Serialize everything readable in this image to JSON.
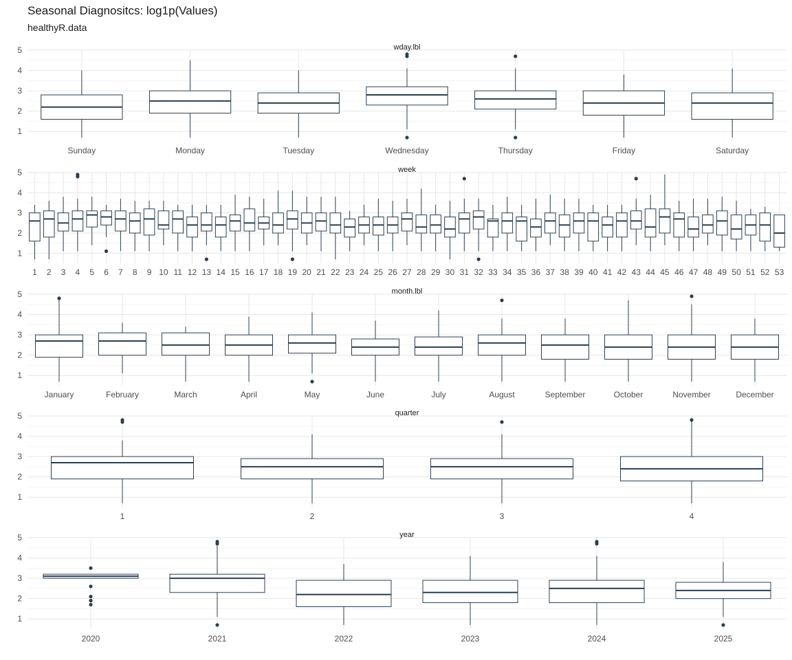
{
  "title": "Seasonal Diagnositcs: log1p(Values)",
  "subtitle": "healthyR.data",
  "colors": {
    "box": "#2c3e50",
    "grid": "#e6e6e6",
    "text": "#4d4d4d"
  },
  "chart_data": [
    {
      "type": "box",
      "facet": "wday.lbl",
      "ylim": [
        0.5,
        5.0
      ],
      "yticks": [
        1,
        2,
        3,
        4,
        5
      ],
      "categories": [
        "Sunday",
        "Monday",
        "Tuesday",
        "Wednesday",
        "Thursday",
        "Friday",
        "Saturday"
      ],
      "boxes": [
        {
          "lo": 0.7,
          "q1": 1.6,
          "med": 2.2,
          "q3": 2.8,
          "hi": 4.0,
          "out": []
        },
        {
          "lo": 0.7,
          "q1": 1.9,
          "med": 2.5,
          "q3": 3.0,
          "hi": 4.5,
          "out": []
        },
        {
          "lo": 0.7,
          "q1": 1.9,
          "med": 2.4,
          "q3": 2.9,
          "hi": 4.0,
          "out": []
        },
        {
          "lo": 1.1,
          "q1": 2.3,
          "med": 2.8,
          "q3": 3.2,
          "hi": 4.1,
          "out": [
            4.7,
            4.8,
            0.7
          ]
        },
        {
          "lo": 1.1,
          "q1": 2.1,
          "med": 2.6,
          "q3": 3.0,
          "hi": 4.1,
          "out": [
            4.7,
            0.7
          ]
        },
        {
          "lo": 0.7,
          "q1": 1.8,
          "med": 2.4,
          "q3": 3.0,
          "hi": 3.8,
          "out": []
        },
        {
          "lo": 0.7,
          "q1": 1.6,
          "med": 2.4,
          "q3": 2.9,
          "hi": 4.1,
          "out": []
        }
      ]
    },
    {
      "type": "box",
      "facet": "week",
      "ylim": [
        0.5,
        5.0
      ],
      "yticks": [
        1,
        2,
        3,
        4,
        5
      ],
      "categories": [
        "1",
        "2",
        "3",
        "4",
        "5",
        "6",
        "7",
        "8",
        "9",
        "10",
        "11",
        "12",
        "13",
        "14",
        "15",
        "16",
        "17",
        "18",
        "19",
        "20",
        "21",
        "22",
        "23",
        "24",
        "25",
        "26",
        "27",
        "28",
        "29",
        "30",
        "31",
        "32",
        "33",
        "34",
        "35",
        "36",
        "37",
        "38",
        "39",
        "40",
        "41",
        "42",
        "43",
        "44",
        "45",
        "46",
        "47",
        "48",
        "49",
        "50",
        "51",
        "52",
        "53"
      ],
      "boxes": [
        {
          "lo": 0.7,
          "q1": 1.6,
          "med": 2.6,
          "q3": 3.0,
          "hi": 3.4,
          "out": []
        },
        {
          "lo": 0.7,
          "q1": 1.8,
          "med": 2.7,
          "q3": 3.1,
          "hi": 3.6,
          "out": []
        },
        {
          "lo": 1.1,
          "q1": 2.1,
          "med": 2.5,
          "q3": 3.0,
          "hi": 3.8,
          "out": []
        },
        {
          "lo": 1.1,
          "q1": 2.1,
          "med": 2.7,
          "q3": 3.1,
          "hi": 3.7,
          "out": [
            4.8,
            4.9
          ]
        },
        {
          "lo": 1.4,
          "q1": 2.3,
          "med": 2.9,
          "q3": 3.1,
          "hi": 3.8,
          "out": []
        },
        {
          "lo": 1.8,
          "q1": 2.4,
          "med": 2.8,
          "q3": 3.1,
          "hi": 3.4,
          "out": [
            1.1
          ]
        },
        {
          "lo": 1.1,
          "q1": 2.1,
          "med": 2.7,
          "q3": 3.1,
          "hi": 3.7,
          "out": []
        },
        {
          "lo": 1.1,
          "q1": 2.0,
          "med": 2.6,
          "q3": 3.0,
          "hi": 3.6,
          "out": []
        },
        {
          "lo": 1.1,
          "q1": 1.9,
          "med": 2.7,
          "q3": 3.2,
          "hi": 3.6,
          "out": []
        },
        {
          "lo": 1.4,
          "q1": 2.2,
          "med": 2.4,
          "q3": 3.1,
          "hi": 3.6,
          "out": []
        },
        {
          "lo": 1.1,
          "q1": 2.0,
          "med": 2.7,
          "q3": 3.1,
          "hi": 3.4,
          "out": []
        },
        {
          "lo": 1.1,
          "q1": 1.8,
          "med": 2.4,
          "q3": 2.8,
          "hi": 3.4,
          "out": []
        },
        {
          "lo": 1.4,
          "q1": 2.1,
          "med": 2.4,
          "q3": 3.0,
          "hi": 3.4,
          "out": [
            0.7
          ]
        },
        {
          "lo": 1.1,
          "q1": 1.8,
          "med": 2.4,
          "q3": 2.8,
          "hi": 3.4,
          "out": []
        },
        {
          "lo": 1.1,
          "q1": 2.1,
          "med": 2.6,
          "q3": 2.9,
          "hi": 3.9,
          "out": []
        },
        {
          "lo": 1.1,
          "q1": 2.1,
          "med": 2.5,
          "q3": 3.2,
          "hi": 3.8,
          "out": []
        },
        {
          "lo": 1.4,
          "q1": 2.2,
          "med": 2.5,
          "q3": 2.8,
          "hi": 3.7,
          "out": []
        },
        {
          "lo": 1.4,
          "q1": 2.0,
          "med": 2.4,
          "q3": 3.0,
          "hi": 4.1,
          "out": []
        },
        {
          "lo": 1.1,
          "q1": 2.2,
          "med": 2.7,
          "q3": 3.1,
          "hi": 4.1,
          "out": [
            0.7
          ]
        },
        {
          "lo": 1.4,
          "q1": 2.0,
          "med": 2.5,
          "q3": 3.0,
          "hi": 3.8,
          "out": []
        },
        {
          "lo": 1.1,
          "q1": 2.1,
          "med": 2.6,
          "q3": 3.0,
          "hi": 3.8,
          "out": []
        },
        {
          "lo": 0.7,
          "q1": 2.0,
          "med": 2.4,
          "q3": 3.0,
          "hi": 3.8,
          "out": []
        },
        {
          "lo": 1.1,
          "q1": 1.8,
          "med": 2.3,
          "q3": 2.7,
          "hi": 3.1,
          "out": []
        },
        {
          "lo": 1.4,
          "q1": 2.0,
          "med": 2.4,
          "q3": 2.8,
          "hi": 3.4,
          "out": []
        },
        {
          "lo": 1.1,
          "q1": 1.9,
          "med": 2.4,
          "q3": 2.8,
          "hi": 3.7,
          "out": []
        },
        {
          "lo": 1.1,
          "q1": 2.0,
          "med": 2.4,
          "q3": 2.8,
          "hi": 3.6,
          "out": []
        },
        {
          "lo": 1.4,
          "q1": 2.1,
          "med": 2.7,
          "q3": 3.0,
          "hi": 3.7,
          "out": []
        },
        {
          "lo": 1.1,
          "q1": 2.0,
          "med": 2.3,
          "q3": 2.9,
          "hi": 4.2,
          "out": []
        },
        {
          "lo": 1.1,
          "q1": 2.0,
          "med": 2.4,
          "q3": 2.9,
          "hi": 3.4,
          "out": []
        },
        {
          "lo": 0.7,
          "q1": 1.8,
          "med": 2.2,
          "q3": 2.8,
          "hi": 3.6,
          "out": []
        },
        {
          "lo": 1.1,
          "q1": 2.0,
          "med": 2.7,
          "q3": 3.0,
          "hi": 3.7,
          "out": [
            4.7
          ]
        },
        {
          "lo": 1.1,
          "q1": 2.2,
          "med": 2.8,
          "q3": 3.1,
          "hi": 3.7,
          "out": [
            0.7
          ]
        },
        {
          "lo": 1.1,
          "q1": 1.8,
          "med": 2.6,
          "q3": 2.7,
          "hi": 3.4,
          "out": []
        },
        {
          "lo": 1.1,
          "q1": 2.0,
          "med": 2.6,
          "q3": 3.0,
          "hi": 3.8,
          "out": []
        },
        {
          "lo": 1.1,
          "q1": 1.6,
          "med": 2.6,
          "q3": 2.8,
          "hi": 3.4,
          "out": []
        },
        {
          "lo": 1.1,
          "q1": 1.8,
          "med": 2.3,
          "q3": 2.7,
          "hi": 3.7,
          "out": []
        },
        {
          "lo": 1.4,
          "q1": 2.0,
          "med": 2.6,
          "q3": 3.0,
          "hi": 3.9,
          "out": []
        },
        {
          "lo": 1.1,
          "q1": 1.8,
          "med": 2.4,
          "q3": 2.9,
          "hi": 3.7,
          "out": []
        },
        {
          "lo": 1.1,
          "q1": 2.0,
          "med": 2.6,
          "q3": 3.0,
          "hi": 3.7,
          "out": []
        },
        {
          "lo": 1.1,
          "q1": 1.6,
          "med": 2.6,
          "q3": 3.0,
          "hi": 3.4,
          "out": []
        },
        {
          "lo": 1.1,
          "q1": 1.8,
          "med": 2.4,
          "q3": 2.8,
          "hi": 3.4,
          "out": []
        },
        {
          "lo": 1.1,
          "q1": 1.8,
          "med": 2.6,
          "q3": 3.0,
          "hi": 3.4,
          "out": []
        },
        {
          "lo": 1.4,
          "q1": 2.2,
          "med": 2.6,
          "q3": 3.1,
          "hi": 3.7,
          "out": [
            4.7
          ]
        },
        {
          "lo": 1.1,
          "q1": 1.8,
          "med": 2.3,
          "q3": 3.2,
          "hi": 3.9,
          "out": []
        },
        {
          "lo": 1.4,
          "q1": 2.0,
          "med": 2.8,
          "q3": 3.2,
          "hi": 4.9,
          "out": []
        },
        {
          "lo": 1.1,
          "q1": 1.8,
          "med": 2.7,
          "q3": 3.0,
          "hi": 3.6,
          "out": []
        },
        {
          "lo": 1.1,
          "q1": 1.8,
          "med": 2.2,
          "q3": 2.8,
          "hi": 3.7,
          "out": []
        },
        {
          "lo": 1.4,
          "q1": 2.0,
          "med": 2.4,
          "q3": 2.9,
          "hi": 3.7,
          "out": []
        },
        {
          "lo": 1.1,
          "q1": 1.9,
          "med": 2.6,
          "q3": 3.1,
          "hi": 3.8,
          "out": []
        },
        {
          "lo": 1.1,
          "q1": 1.7,
          "med": 2.2,
          "q3": 2.9,
          "hi": 3.6,
          "out": []
        },
        {
          "lo": 1.1,
          "q1": 1.9,
          "med": 2.4,
          "q3": 2.9,
          "hi": 3.2,
          "out": []
        },
        {
          "lo": 1.1,
          "q1": 1.6,
          "med": 2.4,
          "q3": 3.0,
          "hi": 3.3,
          "out": []
        },
        {
          "lo": 1.1,
          "q1": 1.3,
          "med": 2.0,
          "q3": 2.9,
          "hi": 2.9,
          "out": []
        }
      ]
    },
    {
      "type": "box",
      "facet": "month.lbl",
      "ylim": [
        0.5,
        5.0
      ],
      "yticks": [
        1,
        2,
        3,
        4,
        5
      ],
      "categories": [
        "January",
        "February",
        "March",
        "April",
        "May",
        "June",
        "July",
        "August",
        "September",
        "October",
        "November",
        "December"
      ],
      "boxes": [
        {
          "lo": 0.7,
          "q1": 1.9,
          "med": 2.7,
          "q3": 3.0,
          "hi": 4.8,
          "out": [
            4.8
          ]
        },
        {
          "lo": 1.1,
          "q1": 2.0,
          "med": 2.7,
          "q3": 3.1,
          "hi": 3.6,
          "out": []
        },
        {
          "lo": 0.7,
          "q1": 2.0,
          "med": 2.5,
          "q3": 3.1,
          "hi": 3.4,
          "out": []
        },
        {
          "lo": 0.7,
          "q1": 2.0,
          "med": 2.5,
          "q3": 3.0,
          "hi": 3.9,
          "out": []
        },
        {
          "lo": 1.1,
          "q1": 2.1,
          "med": 2.6,
          "q3": 3.0,
          "hi": 4.1,
          "out": [
            0.7
          ]
        },
        {
          "lo": 0.7,
          "q1": 2.0,
          "med": 2.4,
          "q3": 2.8,
          "hi": 3.7,
          "out": []
        },
        {
          "lo": 0.7,
          "q1": 2.0,
          "med": 2.4,
          "q3": 2.9,
          "hi": 4.2,
          "out": []
        },
        {
          "lo": 0.7,
          "q1": 2.0,
          "med": 2.6,
          "q3": 3.0,
          "hi": 3.8,
          "out": [
            4.7
          ]
        },
        {
          "lo": 0.7,
          "q1": 1.8,
          "med": 2.5,
          "q3": 3.0,
          "hi": 3.8,
          "out": []
        },
        {
          "lo": 0.7,
          "q1": 1.8,
          "med": 2.4,
          "q3": 3.0,
          "hi": 4.7,
          "out": []
        },
        {
          "lo": 0.7,
          "q1": 1.8,
          "med": 2.4,
          "q3": 3.0,
          "hi": 4.5,
          "out": [
            4.9
          ]
        },
        {
          "lo": 0.7,
          "q1": 1.8,
          "med": 2.4,
          "q3": 3.0,
          "hi": 3.8,
          "out": []
        }
      ]
    },
    {
      "type": "box",
      "facet": "quarter",
      "ylim": [
        0.5,
        5.0
      ],
      "yticks": [
        1,
        2,
        3,
        4,
        5
      ],
      "categories": [
        "1",
        "2",
        "3",
        "4"
      ],
      "boxes": [
        {
          "lo": 0.7,
          "q1": 1.9,
          "med": 2.7,
          "q3": 3.0,
          "hi": 3.8,
          "out": [
            4.7,
            4.8
          ]
        },
        {
          "lo": 0.7,
          "q1": 1.9,
          "med": 2.5,
          "q3": 2.9,
          "hi": 4.1,
          "out": []
        },
        {
          "lo": 0.7,
          "q1": 1.9,
          "med": 2.5,
          "q3": 2.9,
          "hi": 4.1,
          "out": [
            4.7
          ]
        },
        {
          "lo": 0.7,
          "q1": 1.8,
          "med": 2.4,
          "q3": 3.0,
          "hi": 4.8,
          "out": [
            4.8
          ]
        }
      ]
    },
    {
      "type": "box",
      "facet": "year",
      "ylim": [
        0.5,
        5.0
      ],
      "yticks": [
        1,
        2,
        3,
        4,
        5
      ],
      "categories": [
        "2020",
        "2021",
        "2022",
        "2023",
        "2024",
        "2025"
      ],
      "boxes": [
        {
          "lo": 3.0,
          "q1": 3.0,
          "med": 3.1,
          "q3": 3.2,
          "hi": 3.2,
          "out": [
            3.5,
            2.6,
            2.1,
            1.9,
            1.7
          ]
        },
        {
          "lo": 1.1,
          "q1": 2.3,
          "med": 3.0,
          "q3": 3.2,
          "hi": 4.6,
          "out": [
            4.7,
            4.8,
            0.7
          ]
        },
        {
          "lo": 0.7,
          "q1": 1.6,
          "med": 2.2,
          "q3": 2.9,
          "hi": 3.7,
          "out": []
        },
        {
          "lo": 0.7,
          "q1": 1.8,
          "med": 2.3,
          "q3": 2.9,
          "hi": 4.1,
          "out": []
        },
        {
          "lo": 0.7,
          "q1": 1.8,
          "med": 2.5,
          "q3": 2.9,
          "hi": 4.1,
          "out": [
            4.7,
            4.8
          ]
        },
        {
          "lo": 1.1,
          "q1": 2.0,
          "med": 2.4,
          "q3": 2.8,
          "hi": 3.8,
          "out": [
            0.7
          ]
        }
      ]
    }
  ]
}
